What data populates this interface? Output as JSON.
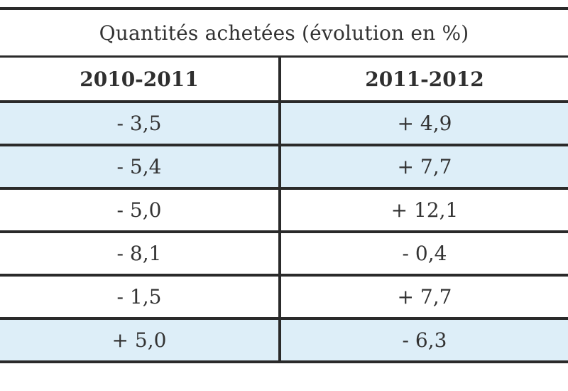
{
  "table": {
    "title": "Quantités achetées (évolution en %)",
    "columns": [
      "2010-2011",
      "2011-2012"
    ],
    "rows": [
      {
        "c1": "- 3,5",
        "c2": "+ 4,9",
        "shaded": true
      },
      {
        "c1": "- 5,4",
        "c2": "+ 7,7",
        "shaded": true
      },
      {
        "c1": "- 5,0",
        "c2": "+ 12,1",
        "shaded": false
      },
      {
        "c1": "- 8,1",
        "c2": "- 0,4",
        "shaded": false
      },
      {
        "c1": "- 1,5",
        "c2": "+ 7,7",
        "shaded": false
      },
      {
        "c1": "+ 5,0",
        "c2": "- 6,3",
        "shaded": true
      }
    ]
  },
  "colors": {
    "shaded_row": "#ddeef8",
    "rule": "#2a2a2a",
    "text": "#333333"
  }
}
